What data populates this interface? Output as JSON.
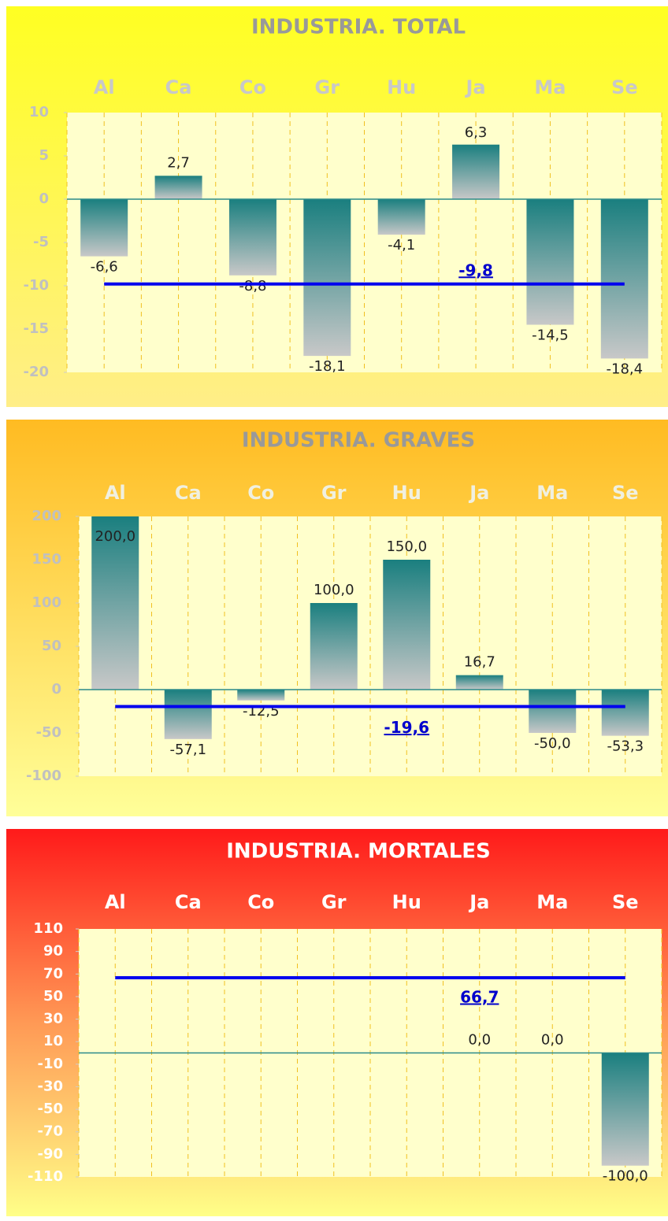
{
  "chart_data": [
    {
      "type": "bar",
      "title": "INDUSTRIA. TOTAL",
      "categories": [
        "Al",
        "Ca",
        "Co",
        "Gr",
        "Hu",
        "Ja",
        "Ma",
        "Se"
      ],
      "values": [
        -6.6,
        2.7,
        -8.8,
        -18.1,
        -4.1,
        6.3,
        -14.5,
        -18.4
      ],
      "value_labels": [
        "-6,6",
        "2,7",
        "-8,8",
        "-18,1",
        "-4,1",
        "6,3",
        "-14,5",
        "-18,4"
      ],
      "average": {
        "value": -9.8,
        "label": "-9,8",
        "color": "#0000ee"
      },
      "ylim": [
        -20,
        10
      ],
      "yticks": [
        -20,
        -15,
        -10,
        -5,
        0,
        5,
        10
      ],
      "grid": true
    },
    {
      "type": "bar",
      "title": "INDUSTRIA. GRAVES",
      "categories": [
        "Al",
        "Ca",
        "Co",
        "Gr",
        "Hu",
        "Ja",
        "Ma",
        "Se"
      ],
      "values": [
        200,
        -57.1,
        -12.5,
        100,
        150,
        16.7,
        -50,
        -53.3
      ],
      "value_labels": [
        "200,0",
        "-57,1",
        "-12,5",
        "100,0",
        "150,0",
        "16,7",
        "-50,0",
        "-53,3"
      ],
      "average": {
        "value": -19.6,
        "label": "-19,6",
        "color": "#0000ee"
      },
      "ylim": [
        -100,
        200
      ],
      "yticks": [
        -100,
        -50,
        0,
        50,
        100,
        150,
        200
      ],
      "grid": true
    },
    {
      "type": "bar",
      "title": "INDUSTRIA. MORTALES",
      "categories": [
        "Al",
        "Ca",
        "Co",
        "Gr",
        "Hu",
        "Ja",
        "Ma",
        "Se"
      ],
      "values": [
        null,
        null,
        null,
        null,
        null,
        0,
        0,
        -100
      ],
      "value_labels": [
        null,
        null,
        null,
        null,
        null,
        "0,0",
        "0,0",
        "-100,0"
      ],
      "average": {
        "value": 66.7,
        "label": "66,7",
        "color": "#0000ee"
      },
      "ylim": [
        -110,
        110
      ],
      "yticks": [
        -110,
        -90,
        -70,
        -50,
        -30,
        -10,
        10,
        30,
        50,
        70,
        90,
        110
      ],
      "grid": true
    }
  ]
}
